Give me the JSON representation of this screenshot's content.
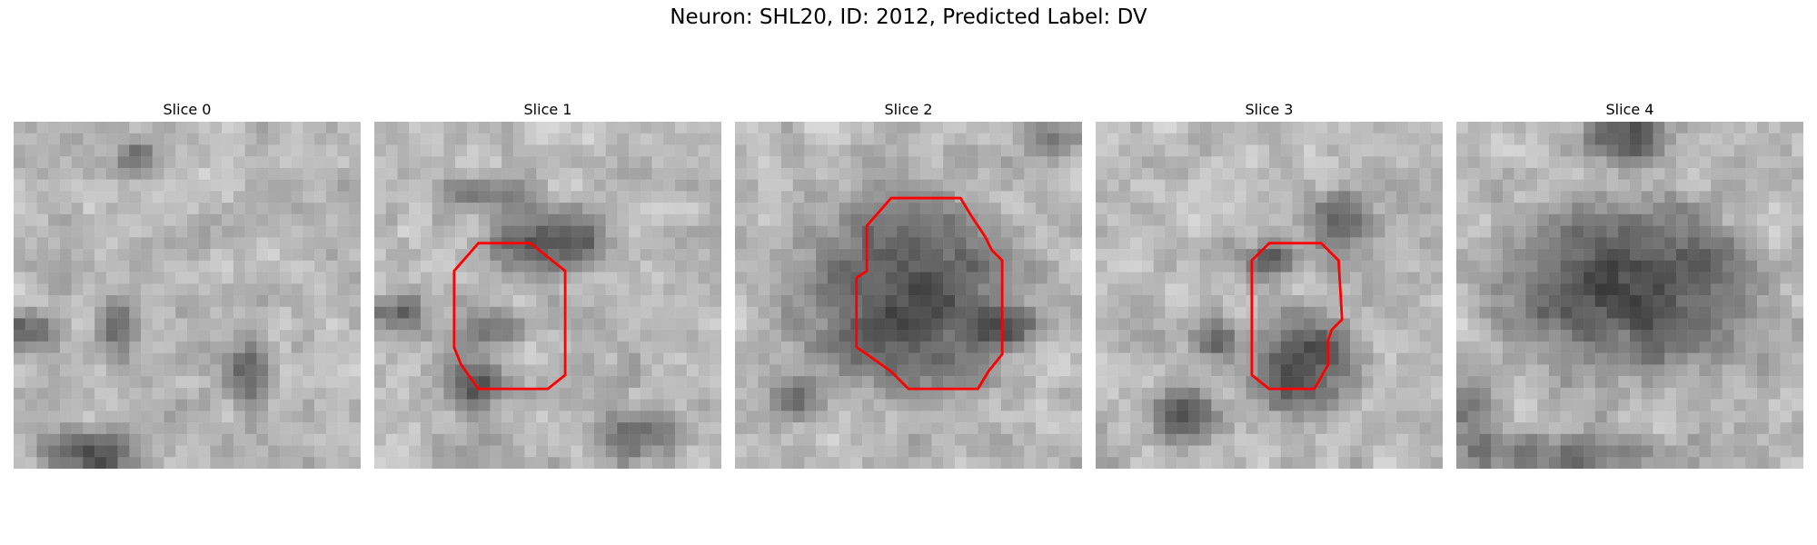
{
  "figure": {
    "title": "Neuron: SHL20, ID: 2012, Predicted Label: DV"
  },
  "panels": [
    {
      "title": "Slice 0",
      "dark_spots": [
        [
          0.05,
          0.6,
          0.1,
          0.05
        ],
        [
          0.3,
          0.6,
          0.08,
          0.1
        ],
        [
          0.22,
          0.95,
          0.18,
          0.08
        ],
        [
          0.48,
          0.7,
          0.05,
          0.02
        ],
        [
          0.68,
          0.72,
          0.06,
          0.15
        ],
        [
          0.35,
          0.1,
          0.06,
          0.05
        ]
      ],
      "contour": []
    },
    {
      "title": "Slice 1",
      "dark_spots": [
        [
          0.32,
          0.2,
          0.18,
          0.05
        ],
        [
          0.5,
          0.35,
          0.22,
          0.12
        ],
        [
          0.35,
          0.6,
          0.14,
          0.05
        ],
        [
          0.08,
          0.55,
          0.1,
          0.05
        ],
        [
          0.3,
          0.75,
          0.1,
          0.1
        ],
        [
          0.75,
          0.9,
          0.15,
          0.08
        ]
      ],
      "contour": [
        [
          0.3,
          0.35
        ],
        [
          0.45,
          0.35
        ],
        [
          0.55,
          0.43
        ],
        [
          0.55,
          0.73
        ],
        [
          0.5,
          0.77
        ],
        [
          0.3,
          0.77
        ],
        [
          0.25,
          0.7
        ],
        [
          0.23,
          0.65
        ],
        [
          0.23,
          0.43
        ]
      ]
    },
    {
      "title": "Slice 2",
      "dark_spots": [
        [
          0.5,
          0.5,
          0.4,
          0.35
        ],
        [
          0.18,
          0.8,
          0.1,
          0.08
        ],
        [
          0.92,
          0.05,
          0.1,
          0.05
        ],
        [
          0.8,
          0.6,
          0.12,
          0.05
        ]
      ],
      "contour": [
        [
          0.45,
          0.22
        ],
        [
          0.65,
          0.22
        ],
        [
          0.68,
          0.27
        ],
        [
          0.72,
          0.33
        ],
        [
          0.74,
          0.37
        ],
        [
          0.77,
          0.4
        ],
        [
          0.77,
          0.67
        ],
        [
          0.73,
          0.72
        ],
        [
          0.7,
          0.77
        ],
        [
          0.5,
          0.77
        ],
        [
          0.45,
          0.72
        ],
        [
          0.38,
          0.67
        ],
        [
          0.35,
          0.65
        ],
        [
          0.35,
          0.45
        ],
        [
          0.38,
          0.43
        ],
        [
          0.38,
          0.3
        ]
      ]
    },
    {
      "title": "Slice 3",
      "dark_spots": [
        [
          0.5,
          0.4,
          0.1,
          0.06
        ],
        [
          0.35,
          0.63,
          0.08,
          0.05
        ],
        [
          0.7,
          0.3,
          0.1,
          0.12
        ],
        [
          0.25,
          0.85,
          0.12,
          0.1
        ],
        [
          0.6,
          0.7,
          0.2,
          0.2
        ]
      ],
      "contour": [
        [
          0.5,
          0.35
        ],
        [
          0.65,
          0.35
        ],
        [
          0.7,
          0.4
        ],
        [
          0.71,
          0.57
        ],
        [
          0.68,
          0.6
        ],
        [
          0.67,
          0.63
        ],
        [
          0.67,
          0.7
        ],
        [
          0.63,
          0.77
        ],
        [
          0.5,
          0.77
        ],
        [
          0.45,
          0.73
        ],
        [
          0.45,
          0.4
        ]
      ]
    },
    {
      "title": "Slice 4",
      "dark_spots": [
        [
          0.5,
          0.48,
          0.45,
          0.3
        ],
        [
          0.5,
          0.05,
          0.15,
          0.1
        ],
        [
          0.05,
          0.85,
          0.05,
          0.15
        ],
        [
          0.3,
          0.95,
          0.4,
          0.05
        ]
      ],
      "contour": []
    }
  ],
  "style": {
    "contour_color": "#ff0000"
  }
}
